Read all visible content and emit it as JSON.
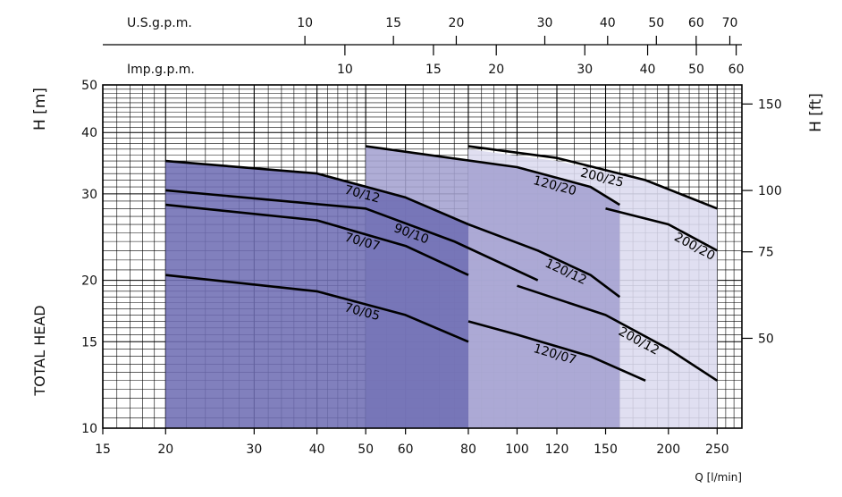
{
  "chart_data": {
    "type": "area",
    "x_scale": "log",
    "y_scale": "log",
    "xlabel": "Q [l/min]",
    "ylabel_left": "H [m]",
    "ylabel_right": "H [ft]",
    "side_label": "TOTAL HEAD",
    "xlim": [
      15,
      280
    ],
    "ylim": [
      10,
      50
    ],
    "x_ticks": [
      15,
      20,
      30,
      40,
      50,
      60,
      80,
      100,
      120,
      150,
      200,
      250
    ],
    "y_ticks": [
      10,
      15,
      20,
      30,
      40,
      50
    ],
    "y_ticks_ft": [
      50,
      75,
      100,
      150
    ],
    "top_axis_usgpm": {
      "label": "U.S.g.p.m.",
      "ticks": [
        10,
        15,
        20,
        30,
        40,
        50,
        60,
        70
      ]
    },
    "top_axis_impgpm": {
      "label": "Imp.g.p.m.",
      "ticks": [
        10,
        15,
        20,
        30,
        40,
        50,
        60
      ]
    },
    "grid": true,
    "colors": {
      "region_70": "#6f6eb4",
      "region_120": "#a4a2d0",
      "region_200": "#dcdbef",
      "curve": "#000000"
    },
    "regions": [
      {
        "name": "200",
        "color_key": "region_200",
        "top": [
          [
            80,
            37
          ],
          [
            120,
            35
          ],
          [
            180,
            32
          ],
          [
            250,
            28
          ]
        ],
        "bottom": [
          [
            80,
            10
          ],
          [
            250,
            10
          ]
        ]
      },
      {
        "name": "120",
        "color_key": "region_120",
        "top": [
          [
            50,
            37.5
          ],
          [
            100,
            34
          ],
          [
            140,
            31
          ],
          [
            160,
            28.5
          ]
        ],
        "bottom": [
          [
            50,
            10
          ],
          [
            160,
            10
          ]
        ]
      },
      {
        "name": "70",
        "color_key": "region_70",
        "top": [
          [
            20,
            35
          ],
          [
            40,
            33
          ],
          [
            60,
            29.5
          ],
          [
            80,
            26
          ]
        ],
        "bottom": [
          [
            20,
            10
          ],
          [
            80,
            10
          ]
        ]
      }
    ],
    "series": [
      {
        "name": "70/12",
        "points": [
          [
            20,
            35
          ],
          [
            40,
            33
          ],
          [
            60,
            29.5
          ],
          [
            80,
            26
          ]
        ]
      },
      {
        "name": "70/07",
        "points": [
          [
            20,
            28.5
          ],
          [
            40,
            26.5
          ],
          [
            60,
            23.5
          ],
          [
            80,
            20.5
          ]
        ]
      },
      {
        "name": "70/05",
        "points": [
          [
            20,
            20.5
          ],
          [
            40,
            19
          ],
          [
            60,
            17
          ],
          [
            80,
            15
          ]
        ]
      },
      {
        "name": "90/10",
        "points": [
          [
            20,
            30.5
          ],
          [
            50,
            28
          ],
          [
            75,
            24
          ],
          [
            110,
            20
          ]
        ]
      },
      {
        "name": "120/20",
        "points": [
          [
            50,
            37.5
          ],
          [
            100,
            34
          ],
          [
            140,
            31
          ],
          [
            160,
            28.5
          ]
        ]
      },
      {
        "name": "120/12",
        "points": [
          [
            80,
            26
          ],
          [
            110,
            23
          ],
          [
            140,
            20.5
          ],
          [
            160,
            18.5
          ]
        ]
      },
      {
        "name": "120/07",
        "points": [
          [
            80,
            16.5
          ],
          [
            100,
            15.5
          ],
          [
            140,
            14
          ],
          [
            180,
            12.5
          ]
        ]
      },
      {
        "name": "200/25",
        "points": [
          [
            80,
            37.5
          ],
          [
            120,
            35.5
          ],
          [
            180,
            32
          ],
          [
            250,
            28
          ]
        ]
      },
      {
        "name": "200/20",
        "points": [
          [
            150,
            28
          ],
          [
            200,
            26
          ],
          [
            250,
            23
          ]
        ]
      },
      {
        "name": "200/12",
        "points": [
          [
            100,
            19.5
          ],
          [
            150,
            17
          ],
          [
            200,
            14.5
          ],
          [
            250,
            12.5
          ]
        ]
      }
    ]
  }
}
